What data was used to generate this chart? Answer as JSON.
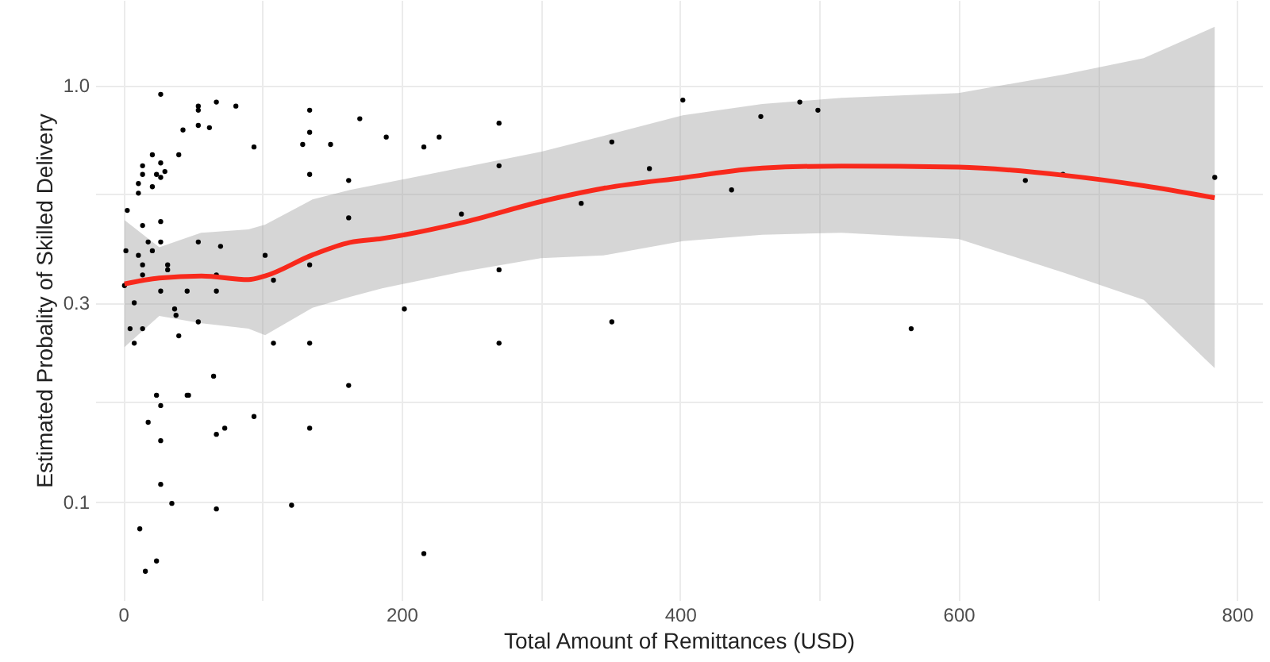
{
  "chart_data": {
    "type": "scatter",
    "xlabel": "Total Amount of Remittances (USD)",
    "ylabel": "Estimated Probality of Skilled Delivery",
    "log": "y",
    "grid": true,
    "xlim": [
      -20,
      818
    ],
    "xticks": [
      0,
      {
        "value": 100,
        "label": null
      },
      200,
      {
        "value": 300,
        "label": null
      },
      400,
      {
        "value": 500,
        "label": null
      },
      600,
      {
        "value": 700,
        "label": null
      },
      800
    ],
    "ylim": [
      0.058,
      1.6
    ],
    "yticks": [
      {
        "value": 0.1,
        "label": "0.1"
      },
      {
        "value": 0.173,
        "label": null
      },
      {
        "value": 0.3,
        "label": "0.3"
      },
      {
        "value": 0.548,
        "label": null
      },
      {
        "value": 1,
        "label": "1.0"
      }
    ],
    "series": [
      {
        "type": "scatter",
        "color": "#000000",
        "marker": "circle",
        "x": [
          27,
          54,
          54,
          67,
          81,
          43,
          54,
          62,
          21,
          27,
          40,
          14,
          14,
          24,
          27,
          30,
          11,
          21,
          11,
          3,
          14,
          27,
          18,
          27,
          54,
          70,
          2,
          11,
          21,
          14,
          32,
          32,
          14,
          67,
          102,
          108,
          1,
          27,
          46,
          67,
          8,
          37,
          38,
          54,
          5,
          14,
          8,
          40,
          65,
          24,
          46,
          47,
          27,
          18,
          73,
          67,
          94,
          27,
          27,
          35,
          67,
          121,
          12,
          24,
          16,
          94,
          134,
          134,
          129,
          149,
          170,
          134,
          162,
          162,
          134,
          108,
          134,
          162,
          134,
          189,
          216,
          227,
          270,
          270,
          243,
          329,
          351,
          378,
          402,
          437,
          458,
          486,
          499,
          270,
          202,
          270,
          351,
          216,
          648,
          675,
          784,
          566
        ],
        "values": [
          0.95,
          0.89,
          0.87,
          0.91,
          0.89,
          0.78,
          0.8,
          0.79,
          0.68,
          0.65,
          0.68,
          0.64,
          0.61,
          0.61,
          0.6,
          0.62,
          0.58,
          0.57,
          0.55,
          0.5,
          0.46,
          0.47,
          0.42,
          0.42,
          0.42,
          0.41,
          0.4,
          0.39,
          0.4,
          0.37,
          0.37,
          0.36,
          0.35,
          0.35,
          0.39,
          0.34,
          0.33,
          0.32,
          0.32,
          0.32,
          0.3,
          0.29,
          0.28,
          0.27,
          0.26,
          0.26,
          0.24,
          0.25,
          0.2,
          0.18,
          0.18,
          0.18,
          0.17,
          0.155,
          0.15,
          0.145,
          0.16,
          0.14,
          0.11,
          0.099,
          0.096,
          0.098,
          0.086,
          0.072,
          0.068,
          0.71,
          0.87,
          0.77,
          0.72,
          0.72,
          0.83,
          0.61,
          0.59,
          0.48,
          0.37,
          0.24,
          0.24,
          0.19,
          0.15,
          0.75,
          0.71,
          0.75,
          0.81,
          0.64,
          0.49,
          0.52,
          0.73,
          0.63,
          0.92,
          0.56,
          0.84,
          0.91,
          0.87,
          0.36,
          0.29,
          0.24,
          0.27,
          0.075,
          0.59,
          0.61,
          0.6,
          0.26
        ]
      },
      {
        "type": "line",
        "color": "#f8291c",
        "x": [
          1,
          26,
          56,
          90,
          102,
          136,
          163,
          186,
          243,
          300,
          345,
          402,
          459,
          516,
          600,
          676,
          733,
          784
        ],
        "values": [
          0.333,
          0.344,
          0.348,
          0.341,
          0.348,
          0.391,
          0.419,
          0.428,
          0.467,
          0.525,
          0.565,
          0.599,
          0.632,
          0.639,
          0.635,
          0.607,
          0.573,
          0.536
        ],
        "upper": [
          0.474,
          0.408,
          0.442,
          0.45,
          0.462,
          0.531,
          0.56,
          0.58,
          0.633,
          0.691,
          0.755,
          0.846,
          0.9,
          0.932,
          0.957,
          1.06,
          1.16,
          1.38
        ],
        "lower": [
          0.235,
          0.279,
          0.268,
          0.26,
          0.251,
          0.292,
          0.31,
          0.325,
          0.356,
          0.384,
          0.39,
          0.422,
          0.437,
          0.442,
          0.427,
          0.354,
          0.305,
          0.209
        ]
      }
    ]
  }
}
